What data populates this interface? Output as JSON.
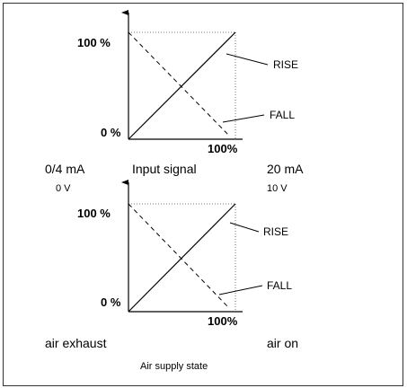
{
  "diagrams": [
    {
      "y_top_label": "100 %",
      "y_bottom_label": "0 %",
      "x_end_label": "100%",
      "rise_label": "RISE",
      "fall_label": "FALL",
      "left_label": "0/4 mA",
      "center_label": "Input signal",
      "right_label": "20 mA",
      "left_sub": "0 V",
      "right_sub": "10 V"
    },
    {
      "y_top_label": "100 %",
      "y_bottom_label": "0 %",
      "x_end_label": "100%",
      "rise_label": "RISE",
      "fall_label": "FALL",
      "left_label": "air exhaust",
      "right_label": "air on",
      "bottom_label": "Air supply state"
    }
  ]
}
